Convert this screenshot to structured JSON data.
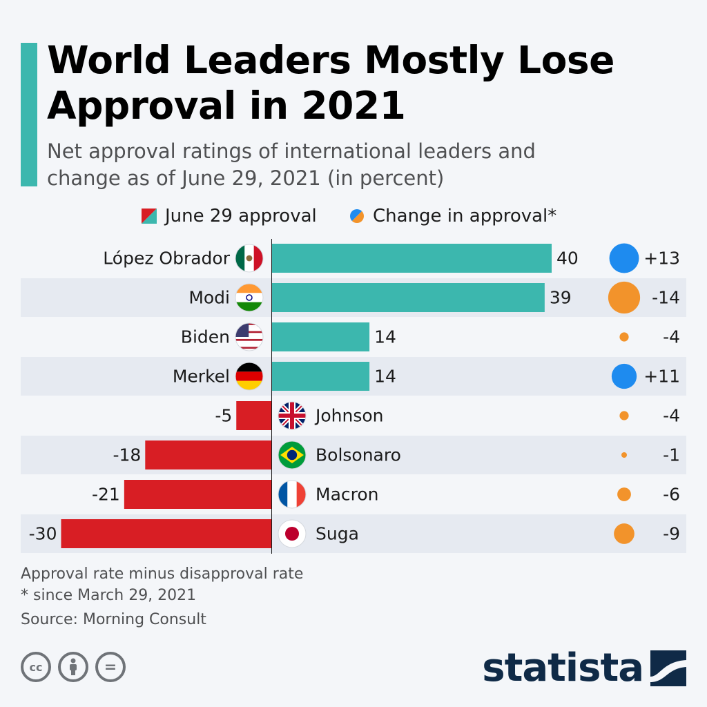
{
  "title": "World Leaders Mostly Lose Approval in 2021",
  "subtitle": "Net approval ratings of international leaders and change as of June 29, 2021 (in percent)",
  "legend": {
    "approval": "June 29 approval",
    "change": "Change in approval*"
  },
  "colors": {
    "accent": "#3cb7ae",
    "negative_bar": "#d81e24",
    "increase_dot": "#1e8bef",
    "decrease_dot": "#f2932b",
    "brand": "#0f2a47"
  },
  "chart_data": {
    "type": "bar",
    "orientation": "horizontal",
    "categories": [
      "López Obrador",
      "Modi",
      "Biden",
      "Merkel",
      "Johnson",
      "Bolsonaro",
      "Macron",
      "Suga"
    ],
    "flags": [
      "mexico-flag",
      "india-flag",
      "usa-flag",
      "germany-flag",
      "uk-flag",
      "brazil-flag",
      "france-flag",
      "japan-flag"
    ],
    "series": [
      {
        "name": "June 29 approval",
        "values": [
          40,
          39,
          14,
          14,
          -5,
          -18,
          -21,
          -30
        ],
        "labels": [
          "40",
          "39",
          "14",
          "14",
          "-5",
          "-18",
          "-21",
          "-30"
        ]
      },
      {
        "name": "Change in approval*",
        "values": [
          13,
          -14,
          -4,
          11,
          -4,
          -1,
          -6,
          -9
        ],
        "labels": [
          "+13",
          "-14",
          "-4",
          "+11",
          "-4",
          "-1",
          "-6",
          "-9"
        ]
      }
    ],
    "xlim": [
      -30,
      40
    ]
  },
  "footnotes": {
    "definition": "Approval rate minus disapproval rate",
    "since": "* since March 29, 2021",
    "source": "Source: Morning Consult"
  },
  "license_icons": [
    "cc-icon",
    "attribution-icon",
    "no-derivatives-icon"
  ],
  "license_labels": [
    "cc",
    "",
    "="
  ],
  "brand": {
    "name": "statista"
  }
}
